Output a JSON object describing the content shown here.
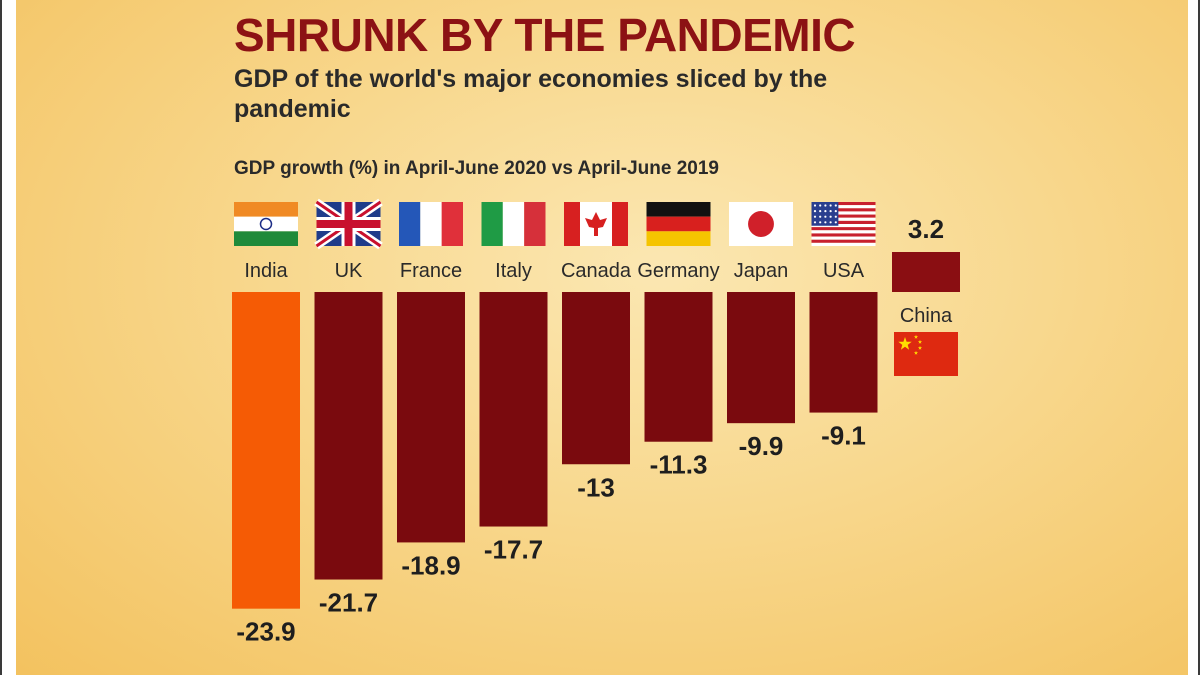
{
  "header": {
    "title": "SHRUNK BY THE PANDEMIC",
    "subtitle": "GDP of the world's major economies sliced by the pandemic",
    "measure_label": "GDP growth (%) in April-June 2020 vs April-June 2019"
  },
  "colors": {
    "title": "#8c1214",
    "bar_negative": "#7a0a0e",
    "bar_highlight": "#f55b05",
    "bar_positive": "#8a0e12",
    "background": "#f8d78c"
  },
  "chart_data": {
    "type": "bar",
    "title": "SHRUNK BY THE PANDEMIC",
    "subtitle": "GDP of the world's major economies sliced by the pandemic",
    "ylabel": "GDP growth (%) in April-June 2020 vs April-June 2019",
    "xlabel": "",
    "categories": [
      "India",
      "UK",
      "France",
      "Italy",
      "Canada",
      "Germany",
      "Japan",
      "USA",
      "China"
    ],
    "values": [
      -23.9,
      -21.7,
      -18.9,
      -17.7,
      -13,
      -11.3,
      -9.9,
      -9.1,
      3.2
    ],
    "value_labels": [
      "-23.9",
      "-21.7",
      "-18.9",
      "-17.7",
      "-13",
      "-11.3",
      "-9.9",
      "-9.1",
      "3.2"
    ],
    "highlight": "India",
    "flags": [
      "india-flag-icon",
      "uk-flag-icon",
      "france-flag-icon",
      "italy-flag-icon",
      "canada-flag-icon",
      "germany-flag-icon",
      "japan-flag-icon",
      "usa-flag-icon",
      "china-flag-icon"
    ],
    "ylim": [
      -23.9,
      3.2
    ],
    "grid": false,
    "legend": "none"
  }
}
